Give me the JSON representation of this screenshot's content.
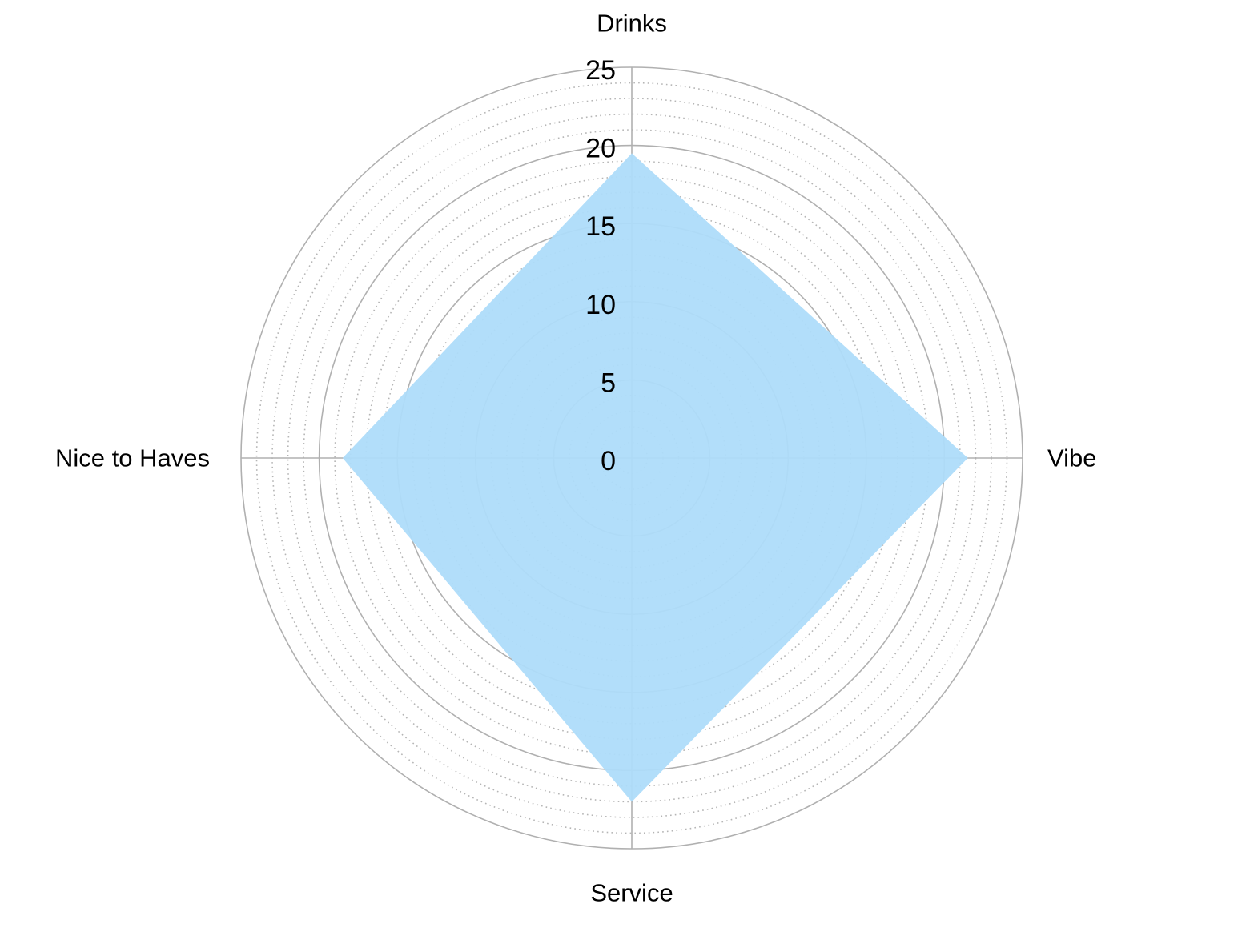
{
  "chart_data": {
    "type": "radar",
    "title": "",
    "categories": [
      "Drinks",
      "Vibe",
      "Service",
      "Nice to Haves"
    ],
    "values": [
      19.5,
      21.5,
      22.0,
      18.5
    ],
    "r_ticks": [
      "0",
      "5",
      "10",
      "15",
      "20",
      "25"
    ],
    "r_range": [
      0,
      25
    ],
    "major_step": 5,
    "minor_step": 1,
    "grid": true,
    "legend": "none",
    "colors": {
      "fill": "#aedcfa",
      "major_grid": "#b0b0b0",
      "minor_grid": "#b5b5b5",
      "text": "#000000"
    }
  }
}
